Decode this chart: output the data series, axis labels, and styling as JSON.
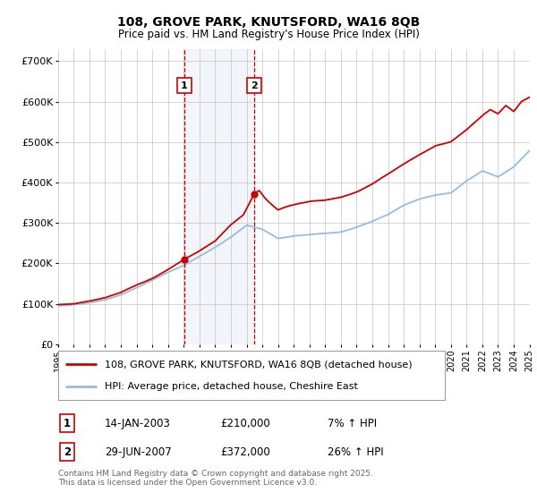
{
  "title": "108, GROVE PARK, KNUTSFORD, WA16 8QB",
  "subtitle": "Price paid vs. HM Land Registry's House Price Index (HPI)",
  "background_color": "#ffffff",
  "plot_bg_color": "#ffffff",
  "grid_color": "#cccccc",
  "red_line_color": "#cc0000",
  "blue_line_color": "#99bbdd",
  "shade_color": "#ccddf0",
  "ylim": [
    0,
    730000
  ],
  "yticks": [
    0,
    100000,
    200000,
    300000,
    400000,
    500000,
    600000,
    700000
  ],
  "ytick_labels": [
    "£0",
    "£100K",
    "£200K",
    "£300K",
    "£400K",
    "£500K",
    "£600K",
    "£700K"
  ],
  "year_start": 1995,
  "year_end": 2025,
  "sale1_year": 2003.04,
  "sale1_price": 210000,
  "sale1_label": "1",
  "sale1_date": "14-JAN-2003",
  "sale1_pct": "7%",
  "sale2_year": 2007.49,
  "sale2_price": 372000,
  "sale2_label": "2",
  "sale2_date": "29-JUN-2007",
  "sale2_pct": "26%",
  "legend_line1": "108, GROVE PARK, KNUTSFORD, WA16 8QB (detached house)",
  "legend_line2": "HPI: Average price, detached house, Cheshire East",
  "footnote": "Contains HM Land Registry data © Crown copyright and database right 2025.\nThis data is licensed under the Open Government Licence v3.0.",
  "table_row1": [
    "1",
    "14-JAN-2003",
    "£210,000",
    "7% ↑ HPI"
  ],
  "table_row2": [
    "2",
    "29-JUN-2007",
    "£372,000",
    "26% ↑ HPI"
  ]
}
